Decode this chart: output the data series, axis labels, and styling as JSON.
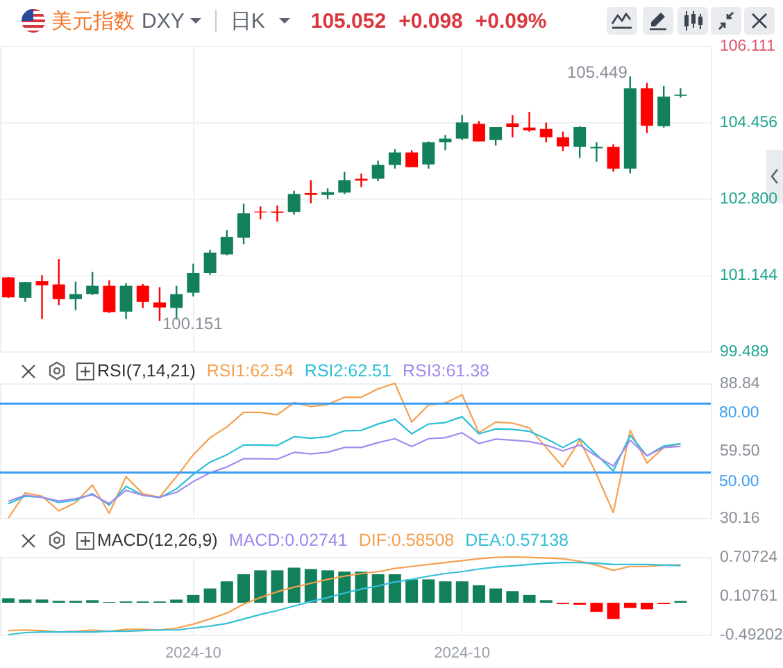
{
  "chart_data": [
    {
      "type": "candlestick",
      "title": "美元指数",
      "subtitle": "DXY",
      "annotations": [
        "日K",
        "105.052",
        "+0.098",
        "+0.09%",
        "105.449",
        "100.151"
      ],
      "categories": [
        null,
        null,
        null,
        null,
        null,
        null,
        null,
        null,
        null,
        null,
        null,
        "2024-10",
        null,
        null,
        null,
        null,
        null,
        null,
        null,
        null,
        null,
        null,
        null,
        null,
        null,
        null,
        null,
        "2024-10",
        null,
        null,
        null,
        null,
        null,
        null,
        null,
        null,
        null,
        null,
        null,
        null,
        null
      ],
      "ohlc": [
        [
          101.09,
          101.1,
          100.65,
          100.66
        ],
        [
          100.65,
          100.99,
          100.56,
          100.99
        ],
        [
          101.01,
          101.14,
          100.19,
          100.92
        ],
        [
          100.94,
          101.49,
          100.49,
          100.62
        ],
        [
          100.62,
          101.0,
          100.38,
          100.73
        ],
        [
          100.73,
          101.21,
          100.71,
          100.91
        ],
        [
          100.91,
          101.03,
          100.32,
          100.34
        ],
        [
          100.35,
          100.97,
          100.19,
          100.91
        ],
        [
          100.91,
          100.95,
          100.43,
          100.56
        ],
        [
          100.55,
          100.88,
          100.151,
          100.44
        ],
        [
          100.43,
          100.91,
          100.18,
          100.73
        ],
        [
          100.76,
          101.39,
          100.68,
          101.19
        ],
        [
          101.19,
          101.69,
          101.15,
          101.63
        ],
        [
          101.59,
          102.12,
          101.57,
          101.97
        ],
        [
          101.95,
          102.69,
          101.81,
          102.48
        ],
        [
          102.52,
          102.63,
          102.35,
          102.5
        ],
        [
          102.52,
          102.65,
          102.3,
          102.49
        ],
        [
          102.51,
          102.97,
          102.45,
          102.9
        ],
        [
          102.92,
          103.2,
          102.7,
          102.88
        ],
        [
          102.88,
          103.02,
          102.79,
          102.94
        ],
        [
          102.93,
          103.38,
          102.9,
          103.2
        ],
        [
          103.23,
          103.34,
          103.05,
          103.19
        ],
        [
          103.23,
          103.62,
          103.18,
          103.53
        ],
        [
          103.53,
          103.87,
          103.45,
          103.8
        ],
        [
          103.8,
          103.85,
          103.48,
          103.48
        ],
        [
          103.54,
          104.04,
          103.45,
          104.02
        ],
        [
          104.02,
          104.18,
          103.85,
          104.1
        ],
        [
          104.1,
          104.61,
          104.07,
          104.45
        ],
        [
          104.42,
          104.48,
          104.04,
          104.04
        ],
        [
          104.07,
          104.35,
          103.95,
          104.35
        ],
        [
          104.43,
          104.61,
          104.13,
          104.35
        ],
        [
          104.34,
          104.68,
          104.25,
          104.28
        ],
        [
          104.31,
          104.45,
          104.02,
          104.13
        ],
        [
          104.13,
          104.25,
          103.83,
          103.93
        ],
        [
          103.92,
          104.37,
          103.68,
          104.35
        ],
        [
          103.89,
          104.02,
          103.6,
          103.92
        ],
        [
          103.92,
          103.98,
          103.38,
          103.45
        ],
        [
          103.45,
          105.449,
          103.35,
          105.19
        ],
        [
          105.19,
          105.31,
          104.22,
          104.38
        ],
        [
          104.37,
          105.24,
          104.34,
          105.01
        ],
        [
          105.03,
          105.19,
          104.99,
          105.052
        ]
      ],
      "colors": [
        "#ff0000",
        "#12805a",
        "#ff0000",
        "#ff0000",
        "#12805a",
        "#12805a",
        "#ff0000",
        "#12805a",
        "#ff0000",
        "#ff0000",
        "#12805a",
        "#12805a",
        "#12805a",
        "#12805a",
        "#12805a",
        "#ff0000",
        "#ff0000",
        "#12805a",
        "#ff0000",
        "#12805a",
        "#12805a",
        "#ff0000",
        "#12805a",
        "#12805a",
        "#ff0000",
        "#12805a",
        "#12805a",
        "#12805a",
        "#ff0000",
        "#12805a",
        "#ff0000",
        "#ff0000",
        "#ff0000",
        "#ff0000",
        "#12805a",
        "#12805a",
        "#ff0000",
        "#12805a",
        "#ff0000",
        "#12805a",
        "#12805a"
      ],
      "ylim": [
        99.489,
        106.111
      ],
      "yticks": [
        99.489,
        101.144,
        {
          "value": 102.8,
          "label": "102.800"
        },
        104.456,
        106.111
      ],
      "grid": true,
      "tick_labels": "y"
    },
    {
      "type": "line",
      "title": "RSI(7,14,21)",
      "legend": "top",
      "categories": [
        null,
        null,
        null,
        null,
        null,
        null,
        null,
        null,
        null,
        null,
        null,
        "2024-10",
        null,
        null,
        null,
        null,
        null,
        null,
        null,
        null,
        null,
        null,
        null,
        null,
        null,
        null,
        null,
        "2024-10",
        null,
        null,
        null,
        null,
        null,
        null,
        null,
        null,
        null,
        null,
        null,
        null,
        null
      ],
      "series": [
        {
          "name": "RSI1:62.54",
          "color": "#f5a04f",
          "values": [
            30.16,
            41.13,
            39.65,
            33.27,
            36.88,
            44.53,
            32.2,
            48.14,
            40.71,
            39.22,
            48.14,
            57.71,
            65.14,
            69.82,
            76.19,
            76.19,
            75.13,
            80.45,
            78.75,
            79.6,
            82.78,
            82.78,
            86.4,
            88.84,
            71.95,
            79.38,
            80.23,
            83.84,
            67.27,
            71.95,
            71.52,
            69.4,
            60.9,
            52.4,
            64.08,
            49.2,
            32.5,
            68.33,
            54.1,
            60.9,
            62.54
          ]
        },
        {
          "name": "RSI2:62.51",
          "color": "#2bbfd8",
          "values": [
            36.46,
            39.65,
            39.22,
            36.88,
            37.95,
            40.71,
            35.82,
            43.9,
            40.07,
            39.01,
            42.83,
            49.2,
            54.52,
            57.71,
            61.96,
            61.96,
            61.74,
            65.57,
            64.93,
            65.57,
            68.12,
            68.33,
            71.1,
            73.22,
            66.85,
            71.1,
            71.73,
            74.28,
            66.85,
            68.97,
            68.76,
            67.91,
            64.72,
            60.9,
            64.72,
            57.71,
            50.7,
            66.21,
            57.28,
            61.53,
            62.51
          ]
        },
        {
          "name": "RSI3:61.38",
          "color": "#a48bef",
          "values": [
            37.52,
            40.07,
            39.22,
            37.52,
            38.58,
            40.28,
            36.46,
            42.2,
            40.07,
            39.22,
            41.34,
            46.02,
            49.85,
            52.4,
            56.01,
            56.01,
            55.8,
            58.77,
            58.13,
            58.77,
            60.9,
            60.9,
            63.02,
            64.72,
            61.32,
            64.72,
            65.14,
            67.27,
            62.6,
            64.51,
            64.08,
            63.45,
            61.96,
            59.41,
            61.96,
            57.07,
            52.82,
            64.08,
            57.28,
            60.9,
            61.38
          ]
        }
      ],
      "ylim": [
        30.16,
        88.84
      ],
      "yticks": [
        30.16,
        {
          "value": 59.5,
          "label": "59.50"
        },
        88.84
      ],
      "ref_lines": [
        {
          "axis": "y",
          "value": 80,
          "label": "80.00",
          "color": "#3d9df2"
        },
        {
          "axis": "y",
          "value": 50,
          "label": "50.00",
          "color": "#3d9df2"
        }
      ],
      "grid": "x",
      "tick_labels": "y"
    },
    {
      "type": "bar",
      "title": "MACD(12,26,9)",
      "legend": "top",
      "categories": [
        null,
        null,
        null,
        null,
        null,
        null,
        null,
        null,
        null,
        null,
        null,
        "2024-10",
        null,
        null,
        null,
        null,
        null,
        null,
        null,
        null,
        null,
        null,
        null,
        null,
        null,
        null,
        null,
        "2024-10",
        null,
        null,
        null,
        null,
        null,
        null,
        null,
        null,
        null,
        null,
        null,
        null,
        null
      ],
      "series": [
        {
          "name": "MACD:0.02741",
          "type": "bar",
          "color": "#9f86f0",
          "colors": [
            "#12805a",
            "#12805a",
            "#12805a",
            "#12805a",
            "#12805a",
            "#12805a",
            "#12805a",
            "#12805a",
            "#12805a",
            "#12805a",
            "#12805a",
            "#12805a",
            "#12805a",
            "#12805a",
            "#12805a",
            "#12805a",
            "#12805a",
            "#12805a",
            "#12805a",
            "#12805a",
            "#12805a",
            "#12805a",
            "#12805a",
            "#12805a",
            "#12805a",
            "#12805a",
            "#12805a",
            "#12805a",
            "#12805a",
            "#12805a",
            "#12805a",
            "#12805a",
            "#12805a",
            "#ff0000",
            "#ff0000",
            "#ff0000",
            "#ff0000",
            "#ff0000",
            "#ff0000",
            "#ff0000",
            "#12805a"
          ],
          "values": [
            0.07,
            0.05,
            0.05,
            0.03,
            0.03,
            0.04,
            0.01,
            0.02,
            0.02,
            0.02,
            0.05,
            0.12,
            0.22,
            0.33,
            0.44,
            0.5,
            0.5,
            0.54,
            0.52,
            0.5,
            0.48,
            0.48,
            0.44,
            0.44,
            0.36,
            0.36,
            0.33,
            0.33,
            0.27,
            0.22,
            0.18,
            0.12,
            0.04,
            -0.02,
            -0.03,
            -0.14,
            -0.25,
            -0.08,
            -0.1,
            -0.02,
            0.02741
          ]
        },
        {
          "name": "DIF:0.58508",
          "type": "line",
          "color": "#f5a04f",
          "values": [
            -0.43,
            -0.42,
            -0.43,
            -0.45,
            -0.44,
            -0.42,
            -0.44,
            -0.41,
            -0.41,
            -0.42,
            -0.39,
            -0.33,
            -0.25,
            -0.16,
            -0.02,
            0.08,
            0.17,
            0.24,
            0.3,
            0.36,
            0.41,
            0.45,
            0.48,
            0.53,
            0.56,
            0.59,
            0.62,
            0.65,
            0.68,
            0.7,
            0.70724,
            0.7,
            0.69,
            0.68,
            0.64,
            0.58,
            0.5,
            0.56,
            0.56,
            0.58,
            0.58508
          ]
        },
        {
          "name": "DEA:0.57138",
          "type": "line",
          "color": "#35bfd9",
          "values": [
            -0.49202,
            -0.46,
            -0.45,
            -0.45,
            -0.45,
            -0.45,
            -0.44,
            -0.44,
            -0.43,
            -0.42,
            -0.42,
            -0.39,
            -0.36,
            -0.32,
            -0.25,
            -0.18,
            -0.12,
            -0.05,
            0.02,
            0.08,
            0.15,
            0.21,
            0.26,
            0.32,
            0.36,
            0.41,
            0.45,
            0.48,
            0.52,
            0.55,
            0.57,
            0.59,
            0.61,
            0.62,
            0.62,
            0.61,
            0.59,
            0.59,
            0.59,
            0.58,
            0.57138
          ]
        }
      ],
      "ylim": [
        -0.49202,
        0.70724
      ],
      "yticks": [
        -0.49202,
        0.10761,
        0.70724
      ],
      "grid": "x"
    }
  ]
}
